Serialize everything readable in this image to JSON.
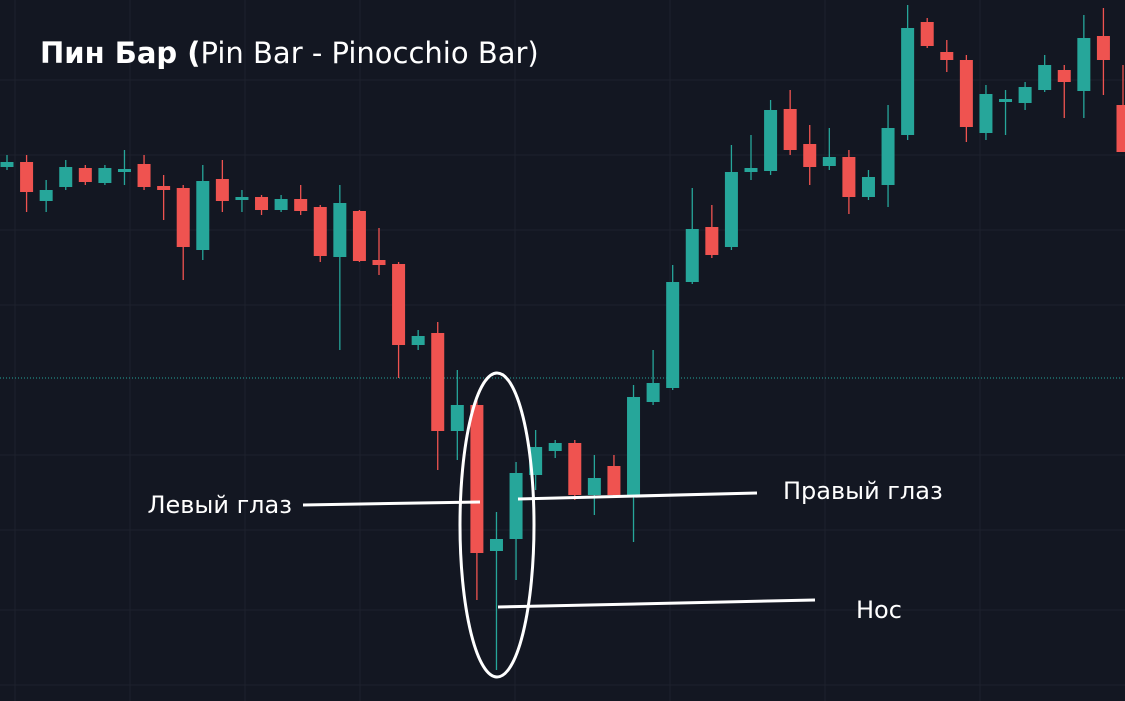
{
  "chart_data": {
    "type": "candlestick",
    "title": [
      "Пин Бар (",
      "Pin Bar - Pinocchio Bar)"
    ],
    "up_color": "#26a69a",
    "down_color": "#ef5350",
    "open": [
      534,
      539,
      500,
      514,
      533,
      518,
      529,
      537,
      515,
      513,
      451,
      522,
      501,
      504,
      491,
      502,
      494,
      444,
      490,
      441,
      437,
      356,
      368,
      270,
      296,
      150,
      162,
      226,
      250,
      258,
      206,
      235,
      206,
      299,
      313,
      419,
      474,
      454,
      529,
      530,
      592,
      557,
      535,
      544,
      504,
      516,
      566,
      679,
      649,
      641,
      568,
      599,
      598,
      611,
      631,
      610,
      665,
      596
    ],
    "high": [
      546,
      546,
      521,
      541,
      536,
      536,
      551,
      546,
      526,
      516,
      536,
      541,
      511,
      506,
      506,
      516,
      496,
      516,
      491,
      473,
      439,
      371,
      379,
      331,
      301,
      189,
      239,
      271,
      261,
      261,
      246,
      246,
      316,
      351,
      436,
      513,
      496,
      556,
      566,
      601,
      611,
      576,
      573,
      551,
      531,
      596,
      696,
      683,
      661,
      646,
      616,
      611,
      619,
      646,
      636,
      686,
      693,
      636
    ],
    "low": [
      531,
      489,
      489,
      511,
      516,
      516,
      516,
      511,
      481,
      421,
      441,
      489,
      489,
      486,
      489,
      486,
      439,
      351,
      439,
      426,
      323,
      351,
      231,
      241,
      101,
      31,
      121,
      211,
      243,
      201,
      186,
      204,
      159,
      296,
      311,
      417,
      443,
      451,
      521,
      526,
      546,
      516,
      531,
      487,
      501,
      494,
      561,
      653,
      629,
      559,
      561,
      566,
      591,
      609,
      583,
      583,
      606,
      549
    ],
    "close": [
      539,
      509,
      511,
      534,
      519,
      533,
      532,
      514,
      511,
      454,
      520,
      500,
      504,
      491,
      502,
      490,
      445,
      498,
      440,
      436,
      356,
      365,
      270,
      296,
      148,
      162,
      228,
      254,
      258,
      206,
      223,
      206,
      304,
      318,
      419,
      472,
      446,
      529,
      533,
      591,
      551,
      534,
      544,
      504,
      524,
      573,
      673,
      655,
      641,
      574,
      607,
      602,
      614,
      636,
      619,
      663,
      641,
      549
    ],
    "annotations": [
      "Левый глаз",
      "Правый глаз",
      "Нос"
    ]
  }
}
